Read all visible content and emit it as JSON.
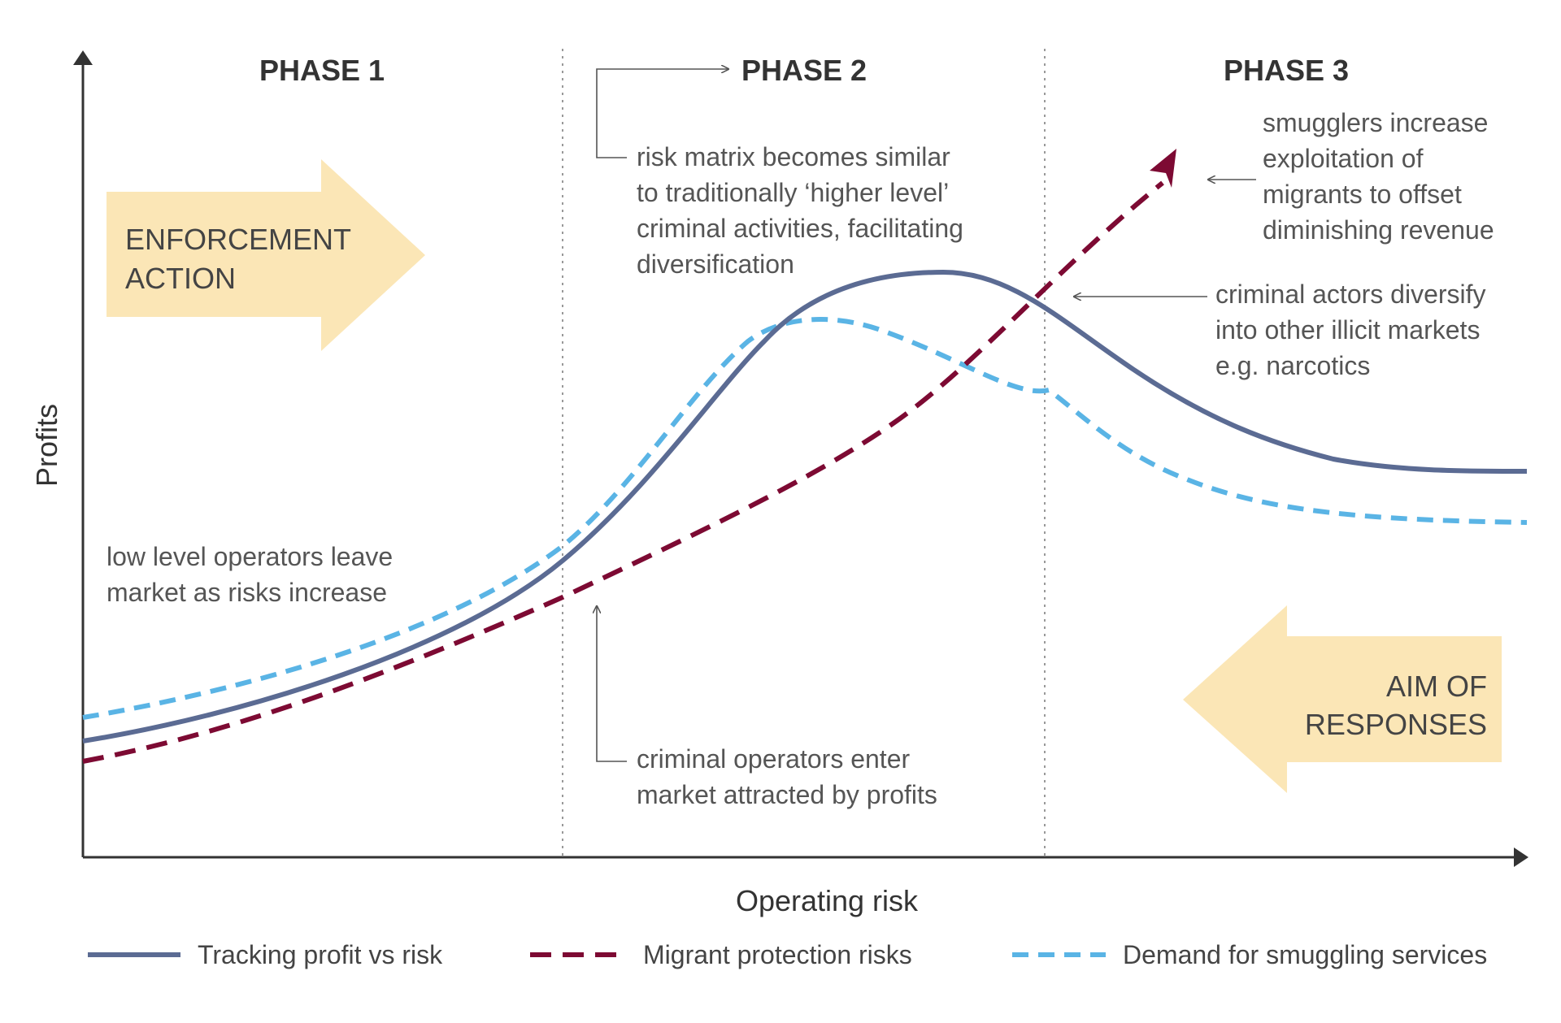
{
  "axes": {
    "y_label": "Profits",
    "x_label": "Operating risk"
  },
  "phases": [
    "PHASE 1",
    "PHASE 2",
    "PHASE 3"
  ],
  "arrows": {
    "enforcement": [
      "ENFORCEMENT",
      "ACTION"
    ],
    "aim": [
      "AIM OF",
      "RESPONSES"
    ]
  },
  "annotations": {
    "risk_matrix": [
      "risk matrix becomes similar",
      "to traditionally ‘higher level’",
      "criminal activities, facilitating",
      "diversification"
    ],
    "smugglers": [
      "smugglers increase",
      "exploitation of",
      "migrants to offset",
      "diminishing revenue"
    ],
    "diversify": [
      "criminal actors diversify",
      "into other illicit markets",
      "e.g. narcotics"
    ],
    "low_level": [
      "low level operators leave",
      "market as risks increase"
    ],
    "enter": [
      "criminal operators enter",
      "market attracted by profits"
    ]
  },
  "legend": [
    {
      "label": "Tracking profit vs risk",
      "color": "#5b6b93",
      "style": "solid"
    },
    {
      "label": "Migrant protection risks",
      "color": "#7d0a33",
      "style": "dashed"
    },
    {
      "label": "Demand for smuggling services",
      "color": "#5ab4e5",
      "style": "dotted"
    }
  ],
  "colors": {
    "arrow_fill": "#fbe6b6",
    "axis": "#333333",
    "divider": "#999999"
  }
}
